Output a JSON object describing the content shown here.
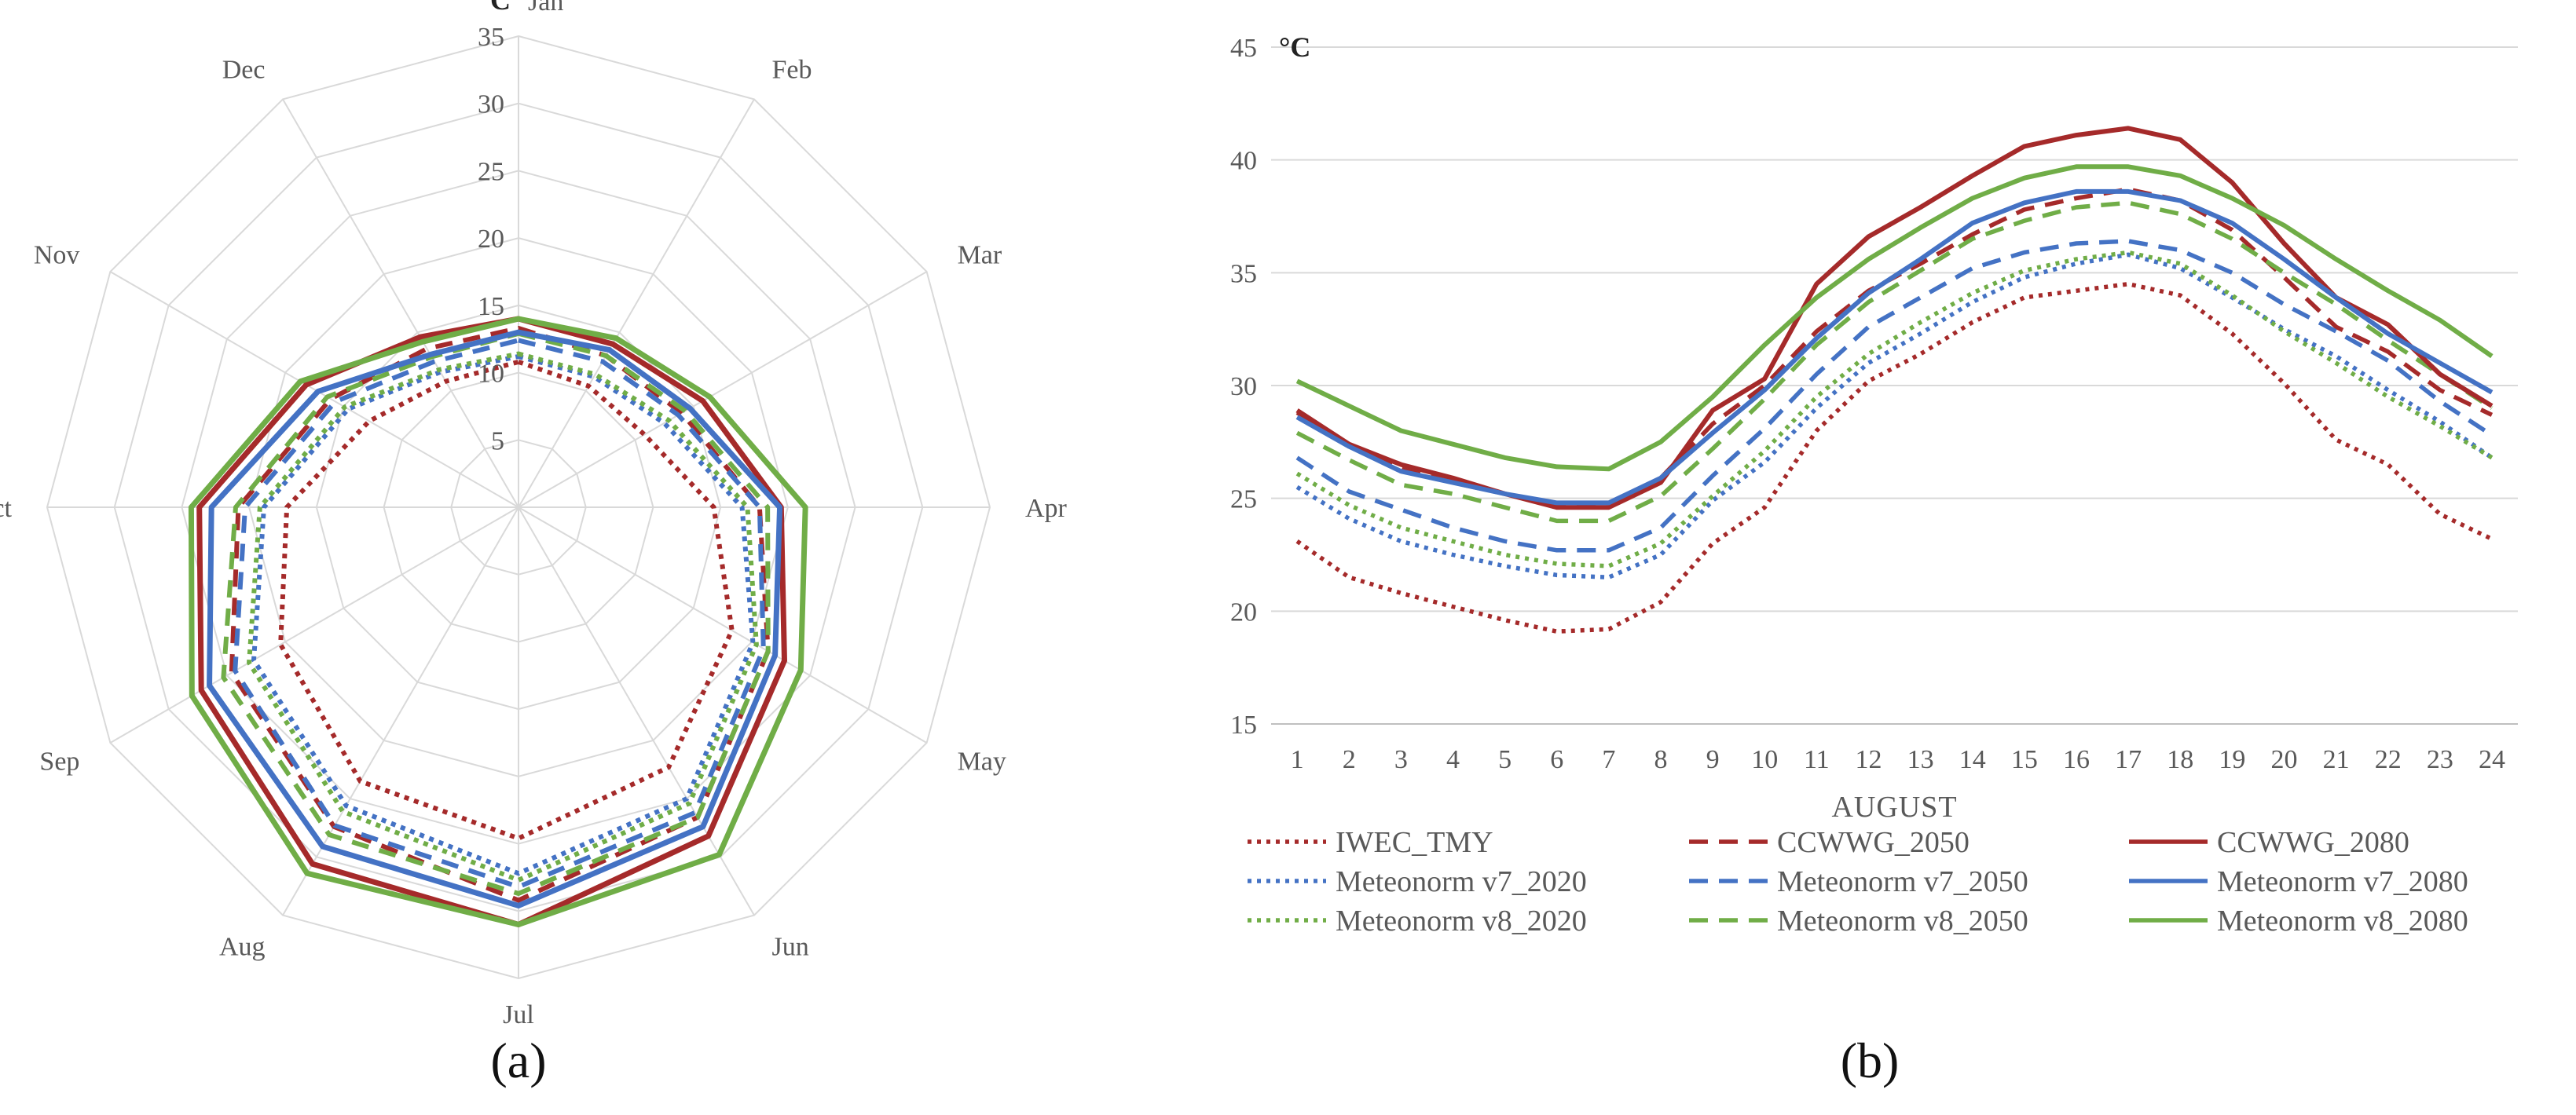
{
  "chart_data": [
    {
      "type": "radar",
      "panel_label": "(a)",
      "unit": "°C",
      "categories": [
        "Jan",
        "Feb",
        "Mar",
        "Apr",
        "May",
        "Jun",
        "Jul",
        "Aug",
        "Sep",
        "Oct",
        "Nov",
        "Dec"
      ],
      "rlim": [
        0,
        35
      ],
      "rticks": [
        5,
        10,
        15,
        20,
        25,
        30,
        35
      ],
      "series": [
        {
          "name": "IWEC_TMY",
          "color": "#a52a2a",
          "dash": "dot",
          "values": [
            10.8,
            10.4,
            10.8,
            14.5,
            18.3,
            22.3,
            24.6,
            23.5,
            20.4,
            17.2,
            12.8,
            10.8
          ]
        },
        {
          "name": "Meteonorm v7_2020",
          "color": "#4472c4",
          "dash": "dot",
          "values": [
            11.2,
            11.2,
            12.5,
            16.6,
            20.1,
            25.0,
            27.2,
            25.6,
            22.7,
            18.9,
            14.6,
            11.6
          ]
        },
        {
          "name": "Meteonorm v8_2020",
          "color": "#70ad47",
          "dash": "dot",
          "values": [
            11.4,
            11.4,
            12.9,
            17.0,
            20.4,
            25.4,
            27.7,
            26.1,
            23.1,
            19.2,
            14.9,
            11.8
          ]
        },
        {
          "name": "CCWWG_2050",
          "color": "#a52a2a",
          "dash": "dash",
          "values": [
            13.3,
            13.0,
            14.0,
            17.9,
            21.4,
            26.6,
            29.2,
            27.4,
            24.6,
            20.8,
            16.1,
            13.6
          ]
        },
        {
          "name": "Meteonorm v7_2050",
          "color": "#4472c4",
          "dash": "dash",
          "values": [
            12.4,
            12.5,
            13.7,
            17.9,
            21.0,
            26.2,
            28.2,
            27.3,
            24.3,
            20.3,
            15.7,
            12.5
          ]
        },
        {
          "name": "Meteonorm v8_2050",
          "color": "#70ad47",
          "dash": "dash",
          "values": [
            12.9,
            13.0,
            14.3,
            18.5,
            21.4,
            26.6,
            28.7,
            28.1,
            25.3,
            21.0,
            16.4,
            12.9
          ]
        },
        {
          "name": "CCWWG_2080",
          "color": "#a52a2a",
          "dash": "solid",
          "values": [
            14.0,
            14.0,
            15.8,
            19.5,
            22.8,
            28.2,
            31.0,
            30.6,
            27.2,
            23.7,
            18.2,
            14.6
          ]
        },
        {
          "name": "Meteonorm v7_2080",
          "color": "#4472c4",
          "dash": "solid",
          "values": [
            13.0,
            13.5,
            14.7,
            19.4,
            22.0,
            27.4,
            29.6,
            29.1,
            26.5,
            22.8,
            17.2,
            13.1
          ]
        },
        {
          "name": "Meteonorm v8_2080",
          "color": "#70ad47",
          "dash": "solid",
          "values": [
            14.0,
            14.5,
            16.4,
            21.3,
            24.2,
            29.8,
            31.0,
            31.4,
            28.0,
            24.3,
            18.7,
            14.2
          ]
        }
      ]
    },
    {
      "type": "line",
      "panel_label": "(b)",
      "unit": "°C",
      "xlabel": "AUGUST",
      "x": [
        1,
        2,
        3,
        4,
        5,
        6,
        7,
        8,
        9,
        10,
        11,
        12,
        13,
        14,
        15,
        16,
        17,
        18,
        19,
        20,
        21,
        22,
        23,
        24
      ],
      "ylim": [
        15,
        45
      ],
      "yticks": [
        15,
        20,
        25,
        30,
        35,
        40,
        45
      ],
      "legend_position": "bottom",
      "series": [
        {
          "name": "IWEC_TMY",
          "color": "#a52a2a",
          "dash": "dot",
          "values": [
            23.1,
            21.5,
            20.8,
            20.2,
            19.6,
            19.1,
            19.2,
            20.4,
            23.0,
            24.6,
            28.0,
            30.2,
            31.4,
            32.8,
            33.9,
            34.2,
            34.5,
            34.0,
            32.3,
            30.1,
            27.6,
            26.5,
            24.3,
            23.2
          ]
        },
        {
          "name": "CCWWG_2050",
          "color": "#a52a2a",
          "dash": "dash",
          "values": [
            28.8,
            27.3,
            26.3,
            25.7,
            25.2,
            24.7,
            24.8,
            25.9,
            28.3,
            30.0,
            32.4,
            34.2,
            35.4,
            36.7,
            37.8,
            38.3,
            38.7,
            38.2,
            36.9,
            34.8,
            32.6,
            31.5,
            29.8,
            28.7
          ]
        },
        {
          "name": "CCWWG_2080",
          "color": "#a52a2a",
          "dash": "solid",
          "values": [
            28.9,
            27.4,
            26.5,
            25.9,
            25.2,
            24.6,
            24.6,
            25.7,
            28.9,
            30.3,
            34.5,
            36.6,
            37.9,
            39.3,
            40.6,
            41.1,
            41.4,
            40.9,
            39.0,
            36.3,
            33.9,
            32.7,
            30.5,
            29.1
          ]
        },
        {
          "name": "Meteonorm v7_2020",
          "color": "#4472c4",
          "dash": "dot",
          "values": [
            25.5,
            24.1,
            23.1,
            22.5,
            22.0,
            21.6,
            21.5,
            22.5,
            24.9,
            26.6,
            29.0,
            31.0,
            32.3,
            33.7,
            34.8,
            35.4,
            35.8,
            35.2,
            33.9,
            32.5,
            31.3,
            29.8,
            28.4,
            26.8
          ]
        },
        {
          "name": "Meteonorm v7_2050",
          "color": "#4472c4",
          "dash": "dash",
          "values": [
            26.8,
            25.3,
            24.5,
            23.7,
            23.1,
            22.7,
            22.7,
            23.7,
            26.0,
            28.1,
            30.5,
            32.6,
            33.9,
            35.2,
            35.9,
            36.3,
            36.4,
            36.0,
            35.0,
            33.6,
            32.4,
            31.1,
            29.3,
            27.8
          ]
        },
        {
          "name": "Meteonorm v7_2080",
          "color": "#4472c4",
          "dash": "solid",
          "values": [
            28.6,
            27.3,
            26.2,
            25.7,
            25.2,
            24.8,
            24.8,
            25.9,
            27.9,
            29.8,
            32.1,
            34.1,
            35.6,
            37.2,
            38.1,
            38.6,
            38.6,
            38.2,
            37.2,
            35.6,
            33.9,
            32.3,
            31.0,
            29.7
          ]
        },
        {
          "name": "Meteonorm v8_2020",
          "color": "#70ad47",
          "dash": "dot",
          "values": [
            26.1,
            24.7,
            23.7,
            23.1,
            22.5,
            22.1,
            22.0,
            23.0,
            25.1,
            27.1,
            29.5,
            31.4,
            32.8,
            34.1,
            35.1,
            35.6,
            35.9,
            35.4,
            34.0,
            32.4,
            31.0,
            29.5,
            28.2,
            26.8
          ]
        },
        {
          "name": "Meteonorm v8_2050",
          "color": "#70ad47",
          "dash": "dash",
          "values": [
            27.9,
            26.7,
            25.6,
            25.2,
            24.6,
            24.0,
            24.0,
            25.1,
            27.2,
            29.4,
            31.8,
            33.7,
            35.1,
            36.5,
            37.3,
            37.9,
            38.1,
            37.6,
            36.5,
            35.0,
            33.6,
            32.0,
            30.5,
            29.0
          ]
        },
        {
          "name": "Meteonorm v8_2080",
          "color": "#70ad47",
          "dash": "solid",
          "values": [
            30.2,
            29.1,
            28.0,
            27.4,
            26.8,
            26.4,
            26.3,
            27.5,
            29.5,
            31.8,
            33.9,
            35.6,
            37.0,
            38.3,
            39.2,
            39.7,
            39.7,
            39.3,
            38.3,
            37.1,
            35.6,
            34.2,
            32.9,
            31.3
          ]
        }
      ]
    }
  ]
}
